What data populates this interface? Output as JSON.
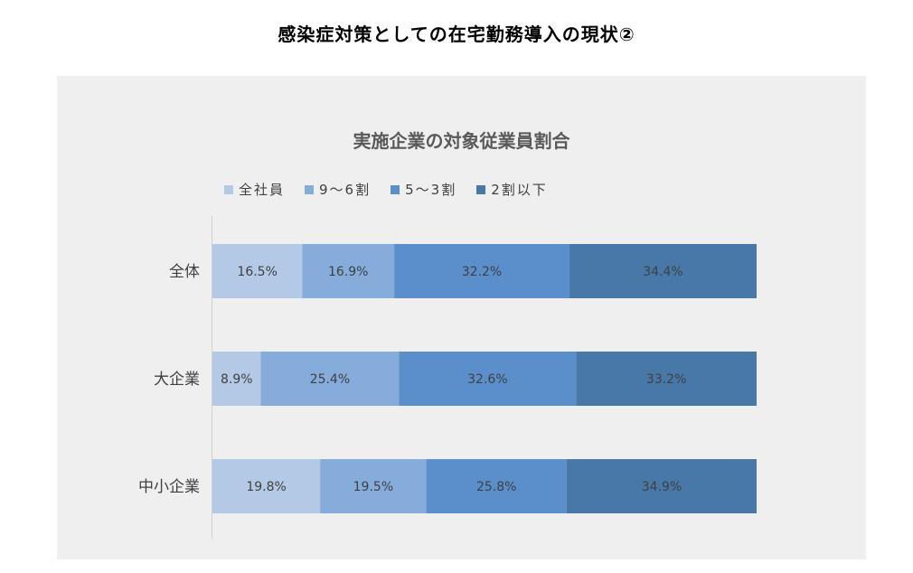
{
  "page_title": "感染症対策としての在宅勤務導入の現状②",
  "chart_data": {
    "type": "bar",
    "orientation": "horizontal",
    "stacked": "percent",
    "title": "実施企業の対象従業員割合",
    "legend_position": "top",
    "categories": [
      "全体",
      "大企業",
      "中小企業"
    ],
    "series": [
      {
        "name": "全社員",
        "color": "#b3c9e6",
        "values": [
          16.5,
          8.9,
          19.8
        ],
        "labels": [
          "16.5%",
          "8.9%",
          "19.8%"
        ]
      },
      {
        "name": "9〜6割",
        "color": "#86acdb",
        "values": [
          16.9,
          25.4,
          19.5
        ],
        "labels": [
          "16.9%",
          "25.4%",
          "19.5%"
        ]
      },
      {
        "name": "5〜3割",
        "color": "#5a8fcb",
        "values": [
          32.2,
          32.6,
          25.8
        ],
        "labels": [
          "32.2%",
          "32.6%",
          "25.8%"
        ]
      },
      {
        "name": "2割以下",
        "color": "#4778a8",
        "values": [
          34.4,
          33.2,
          34.9
        ],
        "labels": [
          "34.4%",
          "33.2%",
          "34.9%"
        ]
      }
    ],
    "grid": false
  }
}
